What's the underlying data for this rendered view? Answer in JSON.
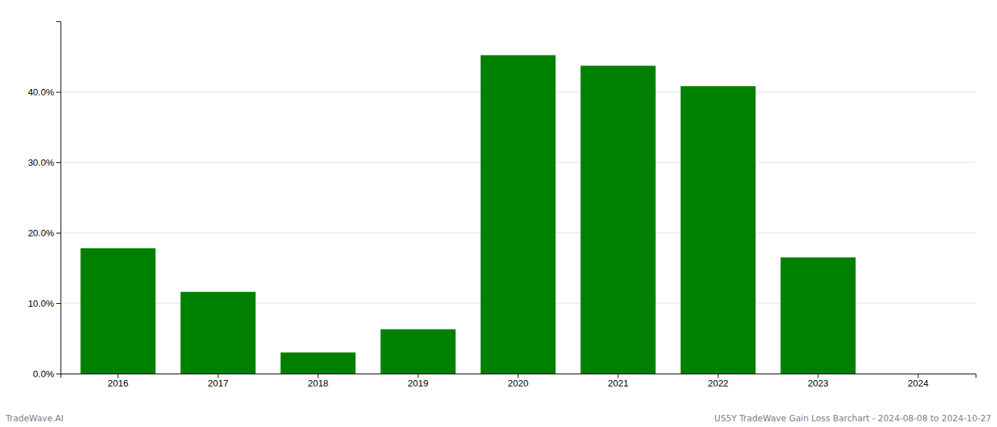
{
  "chart_data": {
    "type": "bar",
    "categories": [
      "2016",
      "2017",
      "2018",
      "2019",
      "2020",
      "2021",
      "2022",
      "2023",
      "2024"
    ],
    "values": [
      0.178,
      0.116,
      0.03,
      0.063,
      0.452,
      0.437,
      0.408,
      0.165,
      0.0
    ],
    "color": "#008000",
    "ylim": [
      0,
      0.5
    ],
    "yticks": [
      {
        "value": 0.0,
        "label": "0.0%"
      },
      {
        "value": 0.1,
        "label": "10.0%"
      },
      {
        "value": 0.2,
        "label": "20.0%"
      },
      {
        "value": 0.3,
        "label": "30.0%"
      },
      {
        "value": 0.4,
        "label": "40.0%"
      }
    ],
    "grid": true,
    "annotations": [
      "TradeWave.AI",
      "US5Y TradeWave Gain Loss Barchart - 2024-08-08 to 2024-10-27"
    ]
  }
}
